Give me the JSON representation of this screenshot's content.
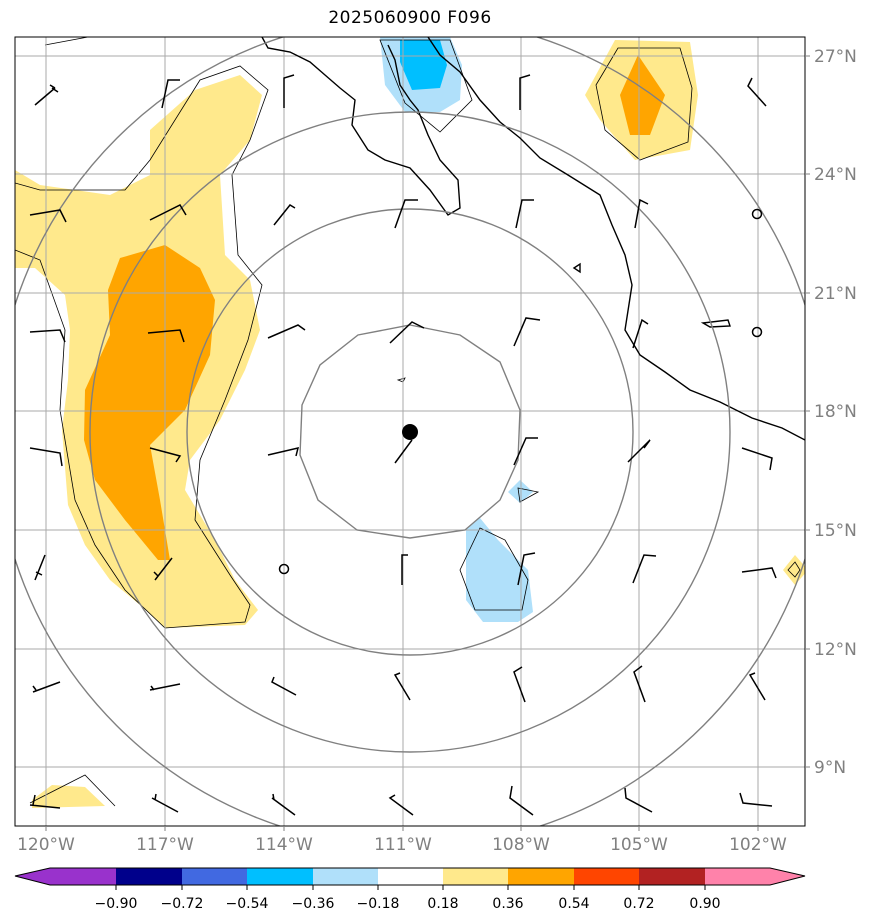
{
  "title": "2025060900 F096",
  "lon_labels": [
    "120°W",
    "117°W",
    "114°W",
    "111°W",
    "108°W",
    "105°W",
    "102°W"
  ],
  "lat_labels": [
    "27°N",
    "24°N",
    "21°N",
    "18°N",
    "15°N",
    "12°N",
    "9°N"
  ],
  "colorbar": {
    "ticks": [
      "−0.90",
      "−0.72",
      "−0.54",
      "−0.36",
      "−0.18",
      "0.18",
      "0.36",
      "0.54",
      "0.72",
      "0.90"
    ],
    "colors": [
      "#9932cc",
      "#00008b",
      "#4169e1",
      "#00bfff",
      "#b0e0fa",
      "#ffffff",
      "#ffe98c",
      "#ffa500",
      "#ff4500",
      "#b22222",
      "#ff82aa"
    ]
  },
  "colors": {
    "light_yellow": "#ffe98c",
    "orange": "#ffa500",
    "light_blue": "#b0e0fa",
    "cyan": "#00bfff",
    "grid": "#aaaaaa",
    "rings": "#808080"
  }
}
